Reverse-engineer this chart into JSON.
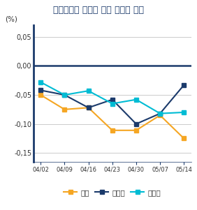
{
  "title": "서울수도권 매매값 주간 변동률 추이",
  "ylabel": "(%)",
  "x_labels": [
    "04/02",
    "04/09",
    "04/16",
    "04/23",
    "04/30",
    "05/07",
    "05/14"
  ],
  "x_values": [
    0,
    1,
    2,
    3,
    4,
    5,
    6
  ],
  "seoul": [
    -0.05,
    -0.075,
    -0.072,
    -0.111,
    -0.111,
    -0.085,
    -0.125
  ],
  "sindosi": [
    -0.042,
    -0.05,
    -0.072,
    -0.058,
    -0.1,
    -0.082,
    -0.033
  ],
  "sudokwon": [
    -0.028,
    -0.05,
    -0.043,
    -0.065,
    -0.058,
    -0.082,
    -0.08
  ],
  "seoul_color": "#f5a623",
  "sindosi_color": "#1b3a6b",
  "sudokwon_color": "#00bcd4",
  "ylim": [
    -0.165,
    0.07
  ],
  "yticks": [
    -0.15,
    -0.1,
    -0.05,
    0.0,
    0.05
  ],
  "ytick_labels": [
    "-0,15",
    "-0,10",
    "-0,05",
    "0,00",
    "0,05"
  ],
  "bg_color": "#ffffff",
  "grid_color": "#cccccc",
  "axis_color": "#1b3a6b",
  "title_color": "#1b3a6b",
  "legend_labels": [
    "서울",
    "신도시",
    "수도권"
  ]
}
